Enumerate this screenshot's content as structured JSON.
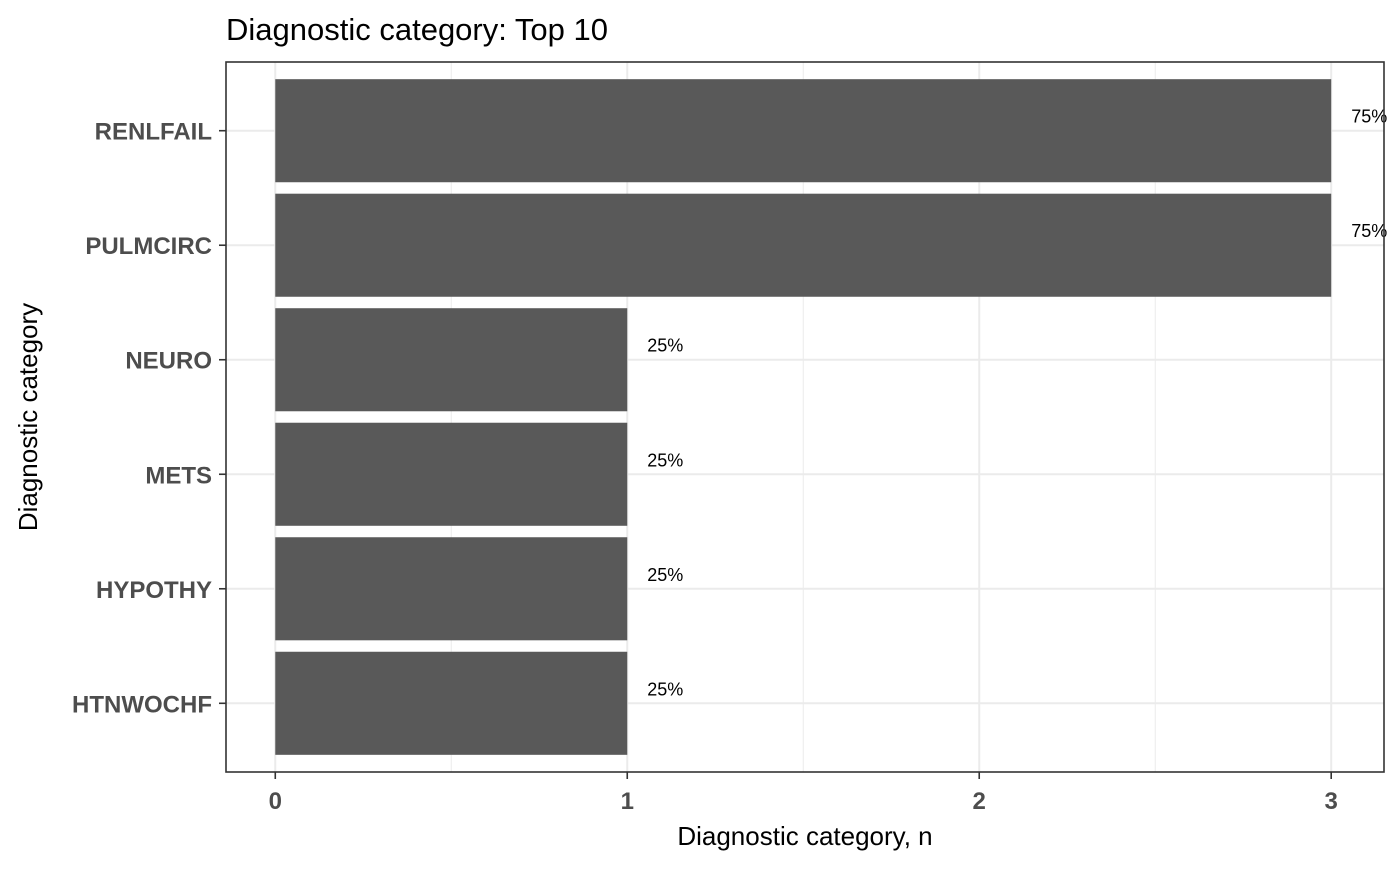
{
  "chart_data": {
    "type": "bar",
    "orientation": "horizontal",
    "title": "Diagnostic category: Top 10",
    "xlabel": "Diagnostic category, n",
    "ylabel": "Diagnostic category",
    "categories": [
      "RENLFAIL",
      "PULMCIRC",
      "NEURO",
      "METS",
      "HYPOTHY",
      "HTNWOCHF"
    ],
    "values": [
      3,
      3,
      1,
      1,
      1,
      1
    ],
    "data_labels": [
      "75%",
      "75%",
      "25%",
      "25%",
      "25%",
      "25%"
    ],
    "x_ticks": [
      "0",
      "1",
      "2",
      "3"
    ],
    "xlim": [
      -0.14,
      3.15
    ],
    "grid": true,
    "legend": "none",
    "bar_color": "#595959",
    "grid_color": "#ebebeb",
    "panel_border_color": "#333333"
  }
}
